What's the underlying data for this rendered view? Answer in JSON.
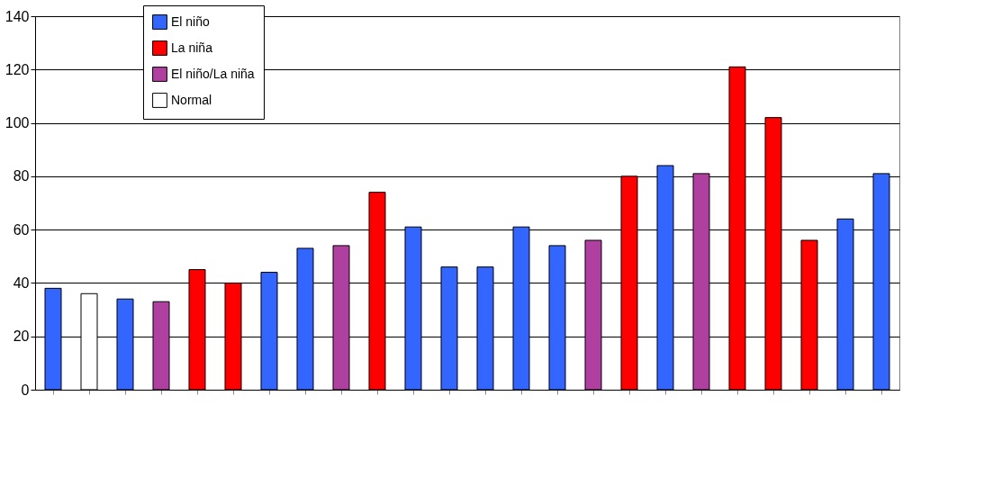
{
  "chart_data": {
    "type": "bar",
    "categories": [
      null,
      null,
      null,
      null,
      null,
      null,
      null,
      null,
      null,
      null,
      null,
      null,
      null,
      null,
      null,
      null,
      null,
      null,
      null,
      null,
      null,
      null,
      null,
      null
    ],
    "series": [
      {
        "name": "El niño",
        "color": "#3366ff",
        "values": [
          38,
          null,
          34,
          null,
          null,
          null,
          44,
          53,
          null,
          null,
          61,
          46,
          46,
          61,
          54,
          null,
          null,
          84,
          null,
          null,
          null,
          null,
          64,
          81
        ]
      },
      {
        "name": "La niña",
        "color": "#ff0000",
        "values": [
          null,
          null,
          null,
          null,
          45,
          40,
          null,
          null,
          null,
          74,
          null,
          null,
          null,
          null,
          null,
          null,
          80,
          null,
          null,
          121,
          102,
          56,
          null,
          null
        ]
      },
      {
        "name": "El niño/La niña",
        "color": "#b040a0",
        "values": [
          null,
          null,
          null,
          33,
          null,
          null,
          null,
          null,
          54,
          null,
          null,
          null,
          null,
          null,
          null,
          56,
          null,
          null,
          81,
          null,
          null,
          null,
          null,
          null
        ]
      },
      {
        "name": "Normal",
        "color": "#ffffff",
        "values": [
          null,
          36,
          null,
          null,
          null,
          null,
          null,
          null,
          null,
          null,
          null,
          null,
          null,
          null,
          null,
          null,
          null,
          null,
          null,
          null,
          null,
          null,
          null,
          null
        ]
      }
    ],
    "ylim": [
      0,
      140
    ],
    "yticks": [
      0,
      20,
      40,
      60,
      80,
      100,
      120,
      140
    ],
    "grid": "y",
    "legend": "top left",
    "tick_labels": "y"
  }
}
